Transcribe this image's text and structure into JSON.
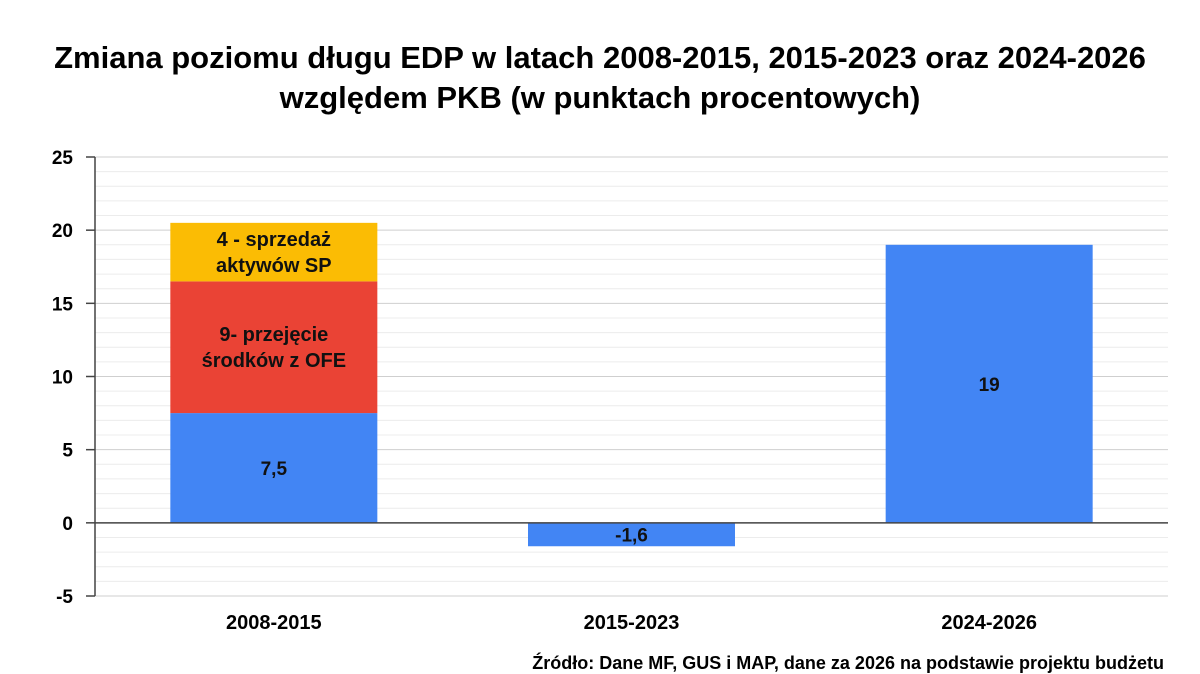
{
  "chart_data": {
    "type": "bar",
    "stacked": true,
    "title": "Zmiana poziomu długu EDP w latach 2008-2015, 2015-2023 oraz 2024-2026 względem PKB (w punktach procentowych)",
    "categories": [
      "2008-2015",
      "2015-2023",
      "2024-2026"
    ],
    "ylim": [
      -5,
      25
    ],
    "yticks": [
      "-5",
      "0",
      "5",
      "10",
      "15",
      "20",
      "25"
    ],
    "grid": true,
    "bars": [
      {
        "category": "2008-2015",
        "segments": [
          {
            "value": 7.5,
            "label": "7,5",
            "color": "#4285f4"
          },
          {
            "value": 9,
            "label": "9- przejęcie\nśrodków z OFE",
            "color": "#ea4335"
          },
          {
            "value": 4,
            "label": "4 - sprzedaż\naktywów SP",
            "color": "#fbbc04"
          }
        ]
      },
      {
        "category": "2015-2023",
        "segments": [
          {
            "value": -1.6,
            "label": "-1,6",
            "color": "#4285f4"
          }
        ]
      },
      {
        "category": "2024-2026",
        "segments": [
          {
            "value": 19,
            "label": "19",
            "color": "#4285f4"
          }
        ]
      }
    ]
  },
  "source_note": "Źródło: Dane MF, GUS i MAP, dane za 2026 na podstawie projektu budżetu"
}
